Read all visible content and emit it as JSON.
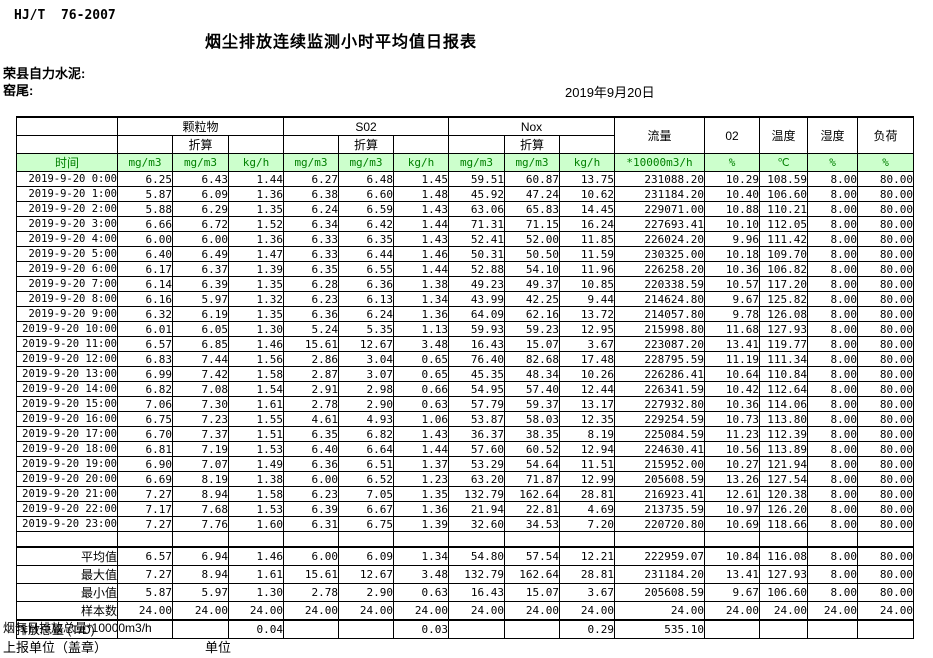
{
  "header": {
    "doc_code": "HJ/T  76-2007",
    "title": "烟尘排放连续监测小时平均值日报表",
    "company": "荣县自力水泥:",
    "unit_line": "窑尾:",
    "date": "2019年9月20日"
  },
  "table": {
    "time_label": "时间",
    "converted_label": "折算",
    "groups": {
      "pm": "颗粒物",
      "so2": "S02",
      "nox": "Nox",
      "flow": "流量",
      "o2": "02",
      "temp": "温度",
      "humidity": "湿度",
      "load": "负荷"
    },
    "units": {
      "mgm3": "mg/m3",
      "kgh": "kg/h",
      "flow": "*10000m3/h",
      "percent": "%",
      "celsius": "℃"
    },
    "rows": [
      [
        "2019-9-20 0:00",
        "6.25",
        "6.43",
        "1.44",
        "6.27",
        "6.48",
        "1.45",
        "59.51",
        "60.87",
        "13.75",
        "231088.20",
        "10.29",
        "108.59",
        "8.00",
        "80.00"
      ],
      [
        "2019-9-20 1:00",
        "5.87",
        "6.09",
        "1.36",
        "6.38",
        "6.60",
        "1.48",
        "45.92",
        "47.24",
        "10.62",
        "231184.20",
        "10.40",
        "106.60",
        "8.00",
        "80.00"
      ],
      [
        "2019-9-20 2:00",
        "5.88",
        "6.29",
        "1.35",
        "6.24",
        "6.59",
        "1.43",
        "63.06",
        "65.83",
        "14.45",
        "229071.00",
        "10.88",
        "110.21",
        "8.00",
        "80.00"
      ],
      [
        "2019-9-20 3:00",
        "6.66",
        "6.72",
        "1.52",
        "6.34",
        "6.42",
        "1.44",
        "71.31",
        "71.15",
        "16.24",
        "227693.41",
        "10.10",
        "112.05",
        "8.00",
        "80.00"
      ],
      [
        "2019-9-20 4:00",
        "6.00",
        "6.00",
        "1.36",
        "6.33",
        "6.35",
        "1.43",
        "52.41",
        "52.00",
        "11.85",
        "226024.20",
        "9.96",
        "111.42",
        "8.00",
        "80.00"
      ],
      [
        "2019-9-20 5:00",
        "6.40",
        "6.49",
        "1.47",
        "6.33",
        "6.44",
        "1.46",
        "50.31",
        "50.50",
        "11.59",
        "230325.00",
        "10.18",
        "109.70",
        "8.00",
        "80.00"
      ],
      [
        "2019-9-20 6:00",
        "6.17",
        "6.37",
        "1.39",
        "6.35",
        "6.55",
        "1.44",
        "52.88",
        "54.10",
        "11.96",
        "226258.20",
        "10.36",
        "106.82",
        "8.00",
        "80.00"
      ],
      [
        "2019-9-20 7:00",
        "6.14",
        "6.39",
        "1.35",
        "6.28",
        "6.36",
        "1.38",
        "49.23",
        "49.37",
        "10.85",
        "220338.59",
        "10.57",
        "117.20",
        "8.00",
        "80.00"
      ],
      [
        "2019-9-20 8:00",
        "6.16",
        "5.97",
        "1.32",
        "6.23",
        "6.13",
        "1.34",
        "43.99",
        "42.25",
        "9.44",
        "214624.80",
        "9.67",
        "125.82",
        "8.00",
        "80.00"
      ],
      [
        "2019-9-20 9:00",
        "6.32",
        "6.19",
        "1.35",
        "6.36",
        "6.24",
        "1.36",
        "64.09",
        "62.16",
        "13.72",
        "214057.80",
        "9.78",
        "126.08",
        "8.00",
        "80.00"
      ],
      [
        "2019-9-20 10:00",
        "6.01",
        "6.05",
        "1.30",
        "5.24",
        "5.35",
        "1.13",
        "59.93",
        "59.23",
        "12.95",
        "215998.80",
        "11.68",
        "127.93",
        "8.00",
        "80.00"
      ],
      [
        "2019-9-20 11:00",
        "6.57",
        "6.85",
        "1.46",
        "15.61",
        "12.67",
        "3.48",
        "16.43",
        "15.07",
        "3.67",
        "223087.20",
        "13.41",
        "119.77",
        "8.00",
        "80.00"
      ],
      [
        "2019-9-20 12:00",
        "6.83",
        "7.44",
        "1.56",
        "2.86",
        "3.04",
        "0.65",
        "76.40",
        "82.68",
        "17.48",
        "228795.59",
        "11.19",
        "111.34",
        "8.00",
        "80.00"
      ],
      [
        "2019-9-20 13:00",
        "6.99",
        "7.42",
        "1.58",
        "2.87",
        "3.07",
        "0.65",
        "45.35",
        "48.34",
        "10.26",
        "226286.41",
        "10.64",
        "110.84",
        "8.00",
        "80.00"
      ],
      [
        "2019-9-20 14:00",
        "6.82",
        "7.08",
        "1.54",
        "2.91",
        "2.98",
        "0.66",
        "54.95",
        "57.40",
        "12.44",
        "226341.59",
        "10.42",
        "112.64",
        "8.00",
        "80.00"
      ],
      [
        "2019-9-20 15:00",
        "7.06",
        "7.30",
        "1.61",
        "2.78",
        "2.90",
        "0.63",
        "57.79",
        "59.37",
        "13.17",
        "227932.80",
        "10.36",
        "114.06",
        "8.00",
        "80.00"
      ],
      [
        "2019-9-20 16:00",
        "6.75",
        "7.23",
        "1.55",
        "4.61",
        "4.93",
        "1.06",
        "53.87",
        "58.03",
        "12.35",
        "229254.59",
        "10.73",
        "113.80",
        "8.00",
        "80.00"
      ],
      [
        "2019-9-20 17:00",
        "6.70",
        "7.37",
        "1.51",
        "6.35",
        "6.82",
        "1.43",
        "36.37",
        "38.35",
        "8.19",
        "225084.59",
        "11.23",
        "112.39",
        "8.00",
        "80.00"
      ],
      [
        "2019-9-20 18:00",
        "6.81",
        "7.19",
        "1.53",
        "6.40",
        "6.64",
        "1.44",
        "57.60",
        "60.52",
        "12.94",
        "224630.41",
        "10.56",
        "113.89",
        "8.00",
        "80.00"
      ],
      [
        "2019-9-20 19:00",
        "6.90",
        "7.07",
        "1.49",
        "6.36",
        "6.51",
        "1.37",
        "53.29",
        "54.64",
        "11.51",
        "215952.00",
        "10.27",
        "121.94",
        "8.00",
        "80.00"
      ],
      [
        "2019-9-20 20:00",
        "6.69",
        "8.19",
        "1.38",
        "6.00",
        "6.52",
        "1.23",
        "63.20",
        "71.87",
        "12.99",
        "205608.59",
        "13.26",
        "127.54",
        "8.00",
        "80.00"
      ],
      [
        "2019-9-20 21:00",
        "7.27",
        "8.94",
        "1.58",
        "6.23",
        "7.05",
        "1.35",
        "132.79",
        "162.64",
        "28.81",
        "216923.41",
        "12.61",
        "120.38",
        "8.00",
        "80.00"
      ],
      [
        "2019-9-20 22:00",
        "7.17",
        "7.68",
        "1.53",
        "6.39",
        "6.67",
        "1.36",
        "21.94",
        "22.81",
        "4.69",
        "213735.59",
        "10.97",
        "126.20",
        "8.00",
        "80.00"
      ],
      [
        "2019-9-20 23:00",
        "7.27",
        "7.76",
        "1.60",
        "6.31",
        "6.75",
        "1.39",
        "32.60",
        "34.53",
        "7.20",
        "220720.80",
        "10.69",
        "118.66",
        "8.00",
        "80.00"
      ]
    ],
    "summary": [
      {
        "label": "平均值",
        "values": [
          "6.57",
          "6.94",
          "1.46",
          "6.00",
          "6.09",
          "1.34",
          "54.80",
          "57.54",
          "12.21",
          "222959.07",
          "10.84",
          "116.08",
          "8.00",
          "80.00"
        ]
      },
      {
        "label": "最大值",
        "values": [
          "7.27",
          "8.94",
          "1.61",
          "15.61",
          "12.67",
          "3.48",
          "132.79",
          "162.64",
          "28.81",
          "231184.20",
          "13.41",
          "127.93",
          "8.00",
          "80.00"
        ]
      },
      {
        "label": "最小值",
        "values": [
          "5.87",
          "5.97",
          "1.30",
          "2.78",
          "2.90",
          "0.63",
          "16.43",
          "15.07",
          "3.67",
          "205608.59",
          "9.67",
          "106.60",
          "8.00",
          "80.00"
        ]
      },
      {
        "label": "样本数",
        "values": [
          "24.00",
          "24.00",
          "24.00",
          "24.00",
          "24.00",
          "24.00",
          "24.00",
          "24.00",
          "24.00",
          "24.00",
          "24.00",
          "24.00",
          "24.00",
          "24.00"
        ]
      }
    ],
    "total_row": {
      "label": "日排放总量 (T/D)",
      "values": [
        "",
        "",
        "0.04",
        "",
        "",
        "0.03",
        "",
        "",
        "0.29",
        "535.10",
        "",
        "",
        "",
        ""
      ]
    }
  },
  "footer": {
    "flow_total_note": "烟气日排放总量*10000m3/h",
    "report_unit_label": "上报单位（盖章）",
    "unit_label": "单位"
  },
  "colors": {
    "header_bg": "#ccffcc",
    "header_text": "#008000",
    "border": "#000000"
  }
}
